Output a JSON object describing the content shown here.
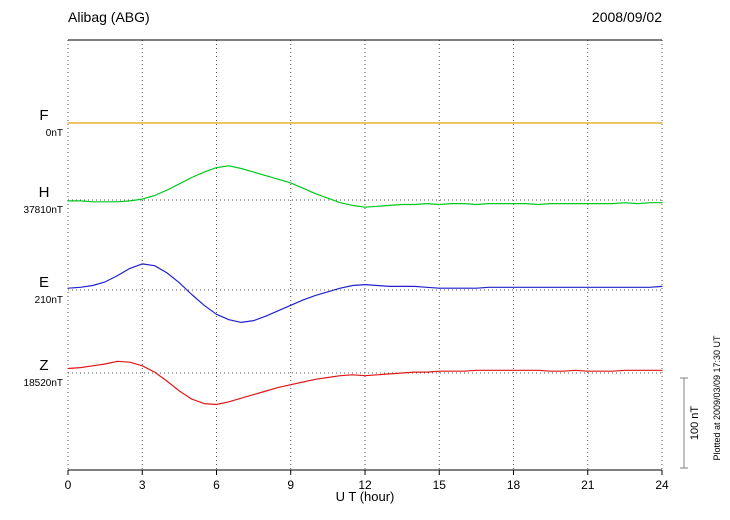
{
  "header": {
    "station": "Alibag (ABG)",
    "date": "2008/09/02"
  },
  "chart_data": {
    "type": "line",
    "title": "Alibag (ABG)",
    "date": "2008/09/02",
    "xlabel": "U T (hour)",
    "x_range": [
      0,
      24
    ],
    "x_ticks": [
      0,
      3,
      6,
      9,
      12,
      15,
      18,
      21,
      24
    ],
    "sample_step_hours": 0.5,
    "grid": "dotted",
    "legend_position": "left-margin",
    "scale_bar_label": "100 nT",
    "scale_bar_nT": 100,
    "plotted_at_note": "Plotted at 2009/03/09 17:30 UT",
    "ylabel": "",
    "series": [
      {
        "name": "F",
        "baseline_value_label": "0nT",
        "baseline_nT": 0,
        "color": "#e0a010",
        "values": [
          0,
          0,
          0,
          0,
          0,
          0,
          0,
          0,
          0,
          0,
          0,
          0,
          0,
          0,
          0,
          0,
          0,
          0,
          0,
          0,
          0,
          0,
          0,
          0,
          0,
          0,
          0,
          0,
          0,
          0,
          0,
          0,
          0,
          0,
          0,
          0,
          0,
          0,
          0,
          0,
          0,
          0,
          0,
          0,
          0,
          0,
          0,
          0,
          0
        ]
      },
      {
        "name": "H",
        "baseline_value_label": "37810nT",
        "baseline_nT": 37810,
        "color": "#00c81e",
        "values": [
          -1,
          -1,
          -2,
          -2,
          -2,
          -1,
          1,
          5,
          11,
          18,
          25,
          31,
          36,
          38,
          35,
          31,
          27,
          23,
          19,
          13,
          7,
          2,
          -3,
          -6,
          -8,
          -7,
          -6,
          -5,
          -5,
          -4,
          -5,
          -4,
          -4,
          -5,
          -4,
          -4,
          -4,
          -4,
          -5,
          -4,
          -4,
          -4,
          -4,
          -4,
          -4,
          -3,
          -4,
          -3,
          -3
        ]
      },
      {
        "name": "E",
        "baseline_value_label": "210nT",
        "baseline_nT": 210,
        "color": "#2222cc",
        "values": [
          2,
          3,
          5,
          9,
          16,
          24,
          29,
          27,
          19,
          8,
          -5,
          -17,
          -27,
          -33,
          -36,
          -34,
          -29,
          -23,
          -17,
          -11,
          -6,
          -2,
          2,
          5,
          6,
          5,
          4,
          4,
          4,
          3,
          2,
          2,
          2,
          2,
          3,
          3,
          3,
          3,
          3,
          3,
          3,
          3,
          3,
          3,
          3,
          3,
          3,
          3,
          4
        ]
      },
      {
        "name": "Z",
        "baseline_value_label": "18520nT",
        "baseline_nT": 18520,
        "color": "#e01818",
        "values": [
          5,
          6,
          8,
          10,
          13,
          12,
          8,
          1,
          -9,
          -20,
          -29,
          -34,
          -35,
          -32,
          -28,
          -24,
          -20,
          -16,
          -13,
          -10,
          -7,
          -5,
          -3,
          -2,
          -3,
          -2,
          -1,
          0,
          1,
          1,
          2,
          2,
          2,
          3,
          3,
          3,
          3,
          3,
          3,
          2,
          2,
          3,
          2,
          2,
          2,
          3,
          3,
          3,
          3
        ]
      }
    ]
  }
}
